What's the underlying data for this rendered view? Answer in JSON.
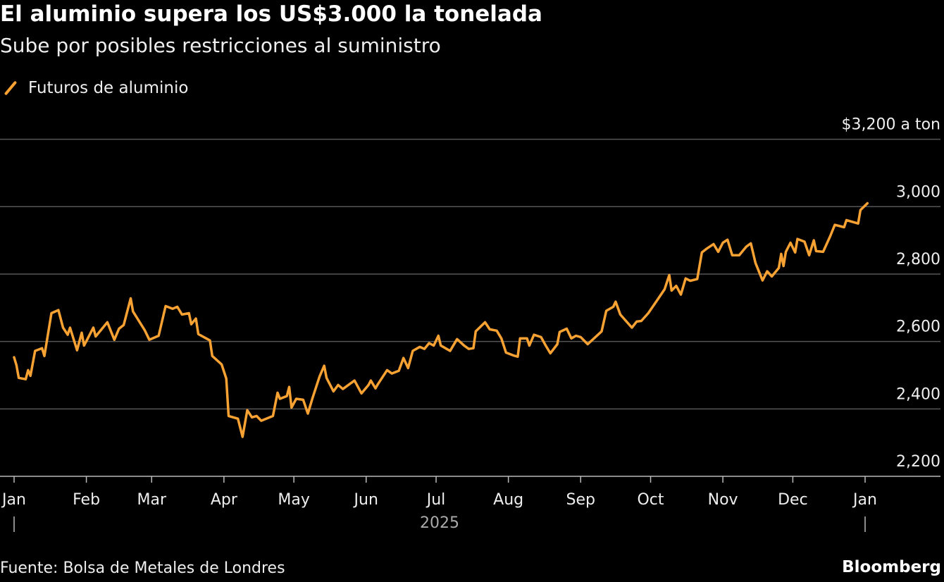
{
  "title": "El aluminio supera los US$3.000 la tonelada",
  "subtitle": "Sube por posibles restricciones al suministro",
  "source": "Fuente: Bolsa de Metales de Londres",
  "brand": "Bloomberg",
  "colors": {
    "series": "#f7a233",
    "background": "#000000",
    "grid": "#555555"
  },
  "chart_data": {
    "type": "line",
    "title": "El aluminio supera los US$3.000 la tonelada",
    "subtitle": "Sube por posibles restricciones al suministro",
    "ylabel": "$3,200 a ton",
    "y_unit_label": "$3,200 a ton",
    "ylim": [
      2200,
      3200
    ],
    "yticks": [
      2200,
      2400,
      2600,
      2800,
      3000,
      3200
    ],
    "ytick_labels": [
      "2,200",
      "2,400",
      "2,600",
      "2,800",
      "3,000",
      "$3,200 a ton"
    ],
    "xlim": [
      "2025-01-01",
      "2026-01-01"
    ],
    "xticks": [
      "2025-01-01",
      "2025-02-01",
      "2025-03-01",
      "2025-04-01",
      "2025-05-01",
      "2025-06-01",
      "2025-07-01",
      "2025-08-01",
      "2025-09-01",
      "2025-10-01",
      "2025-11-01",
      "2025-12-01",
      "2026-01-01"
    ],
    "xtick_labels": [
      "Jan",
      "Feb",
      "Mar",
      "Apr",
      "May",
      "Jun",
      "Jul",
      "Aug",
      "Sep",
      "Oct",
      "Nov",
      "Dec",
      "Jan"
    ],
    "year_label": "2025",
    "grid": true,
    "legend": "top-left",
    "series": [
      {
        "name": "Futuros de aluminio",
        "color": "#f7a233",
        "x": [
          "2025-01-01",
          "2025-01-02",
          "2025-01-03",
          "2025-01-06",
          "2025-01-07",
          "2025-01-08",
          "2025-01-10",
          "2025-01-13",
          "2025-01-14",
          "2025-01-17",
          "2025-01-20",
          "2025-01-22",
          "2025-01-24",
          "2025-01-25",
          "2025-01-28",
          "2025-01-30",
          "2025-01-31",
          "2025-02-04",
          "2025-02-05",
          "2025-02-10",
          "2025-02-13",
          "2025-02-15",
          "2025-02-17",
          "2025-02-20",
          "2025-02-21",
          "2025-02-26",
          "2025-02-28",
          "2025-03-04",
          "2025-03-07",
          "2025-03-10",
          "2025-03-12",
          "2025-03-14",
          "2025-03-17",
          "2025-03-18",
          "2025-03-20",
          "2025-03-21",
          "2025-03-26",
          "2025-03-27",
          "2025-03-31",
          "2025-04-02",
          "2025-04-03",
          "2025-04-07",
          "2025-04-09",
          "2025-04-11",
          "2025-04-13",
          "2025-04-15",
          "2025-04-17",
          "2025-04-22",
          "2025-04-24",
          "2025-04-25",
          "2025-04-28",
          "2025-04-29",
          "2025-04-30",
          "2025-05-02",
          "2025-05-05",
          "2025-05-07",
          "2025-05-09",
          "2025-05-12",
          "2025-05-14",
          "2025-05-15",
          "2025-05-18",
          "2025-05-20",
          "2025-05-22",
          "2025-05-27",
          "2025-05-30",
          "2025-06-02",
          "2025-06-03",
          "2025-06-05",
          "2025-06-06",
          "2025-06-10",
          "2025-06-12",
          "2025-06-15",
          "2025-06-17",
          "2025-06-19",
          "2025-06-21",
          "2025-06-24",
          "2025-06-26",
          "2025-06-28",
          "2025-06-30",
          "2025-07-02",
          "2025-07-03",
          "2025-07-07",
          "2025-07-10",
          "2025-07-13",
          "2025-07-15",
          "2025-07-17",
          "2025-07-18",
          "2025-07-22",
          "2025-07-24",
          "2025-07-27",
          "2025-07-29",
          "2025-07-31",
          "2025-08-03",
          "2025-08-05",
          "2025-08-06",
          "2025-08-09",
          "2025-08-10",
          "2025-08-12",
          "2025-08-15",
          "2025-08-17",
          "2025-08-19",
          "2025-08-22",
          "2025-08-23",
          "2025-08-26",
          "2025-08-28",
          "2025-08-30",
          "2025-09-01",
          "2025-09-04",
          "2025-09-10",
          "2025-09-12",
          "2025-09-15",
          "2025-09-16",
          "2025-09-18",
          "2025-09-23",
          "2025-09-25",
          "2025-09-27",
          "2025-09-30",
          "2025-10-04",
          "2025-10-07",
          "2025-10-09",
          "2025-10-10",
          "2025-10-12",
          "2025-10-14",
          "2025-10-16",
          "2025-10-18",
          "2025-10-21",
          "2025-10-23",
          "2025-10-25",
          "2025-10-28",
          "2025-10-30",
          "2025-11-01",
          "2025-11-03",
          "2025-11-05",
          "2025-11-08",
          "2025-11-11",
          "2025-11-13",
          "2025-11-15",
          "2025-11-18",
          "2025-11-20",
          "2025-11-22",
          "2025-11-25",
          "2025-11-26",
          "2025-11-27",
          "2025-11-28",
          "2025-11-30",
          "2025-12-02",
          "2025-12-03",
          "2025-12-06",
          "2025-12-08",
          "2025-12-10",
          "2025-12-11",
          "2025-12-14",
          "2025-12-17",
          "2025-12-19",
          "2025-12-23",
          "2025-12-24",
          "2025-12-29",
          "2025-12-30",
          "2026-01-02"
        ],
        "y": [
          2553,
          2530,
          2492,
          2488,
          2515,
          2498,
          2572,
          2580,
          2557,
          2684,
          2693,
          2641,
          2620,
          2641,
          2574,
          2626,
          2588,
          2641,
          2615,
          2657,
          2605,
          2638,
          2649,
          2728,
          2689,
          2634,
          2605,
          2617,
          2705,
          2697,
          2703,
          2680,
          2684,
          2651,
          2668,
          2622,
          2603,
          2557,
          2532,
          2490,
          2379,
          2371,
          2317,
          2396,
          2375,
          2379,
          2365,
          2379,
          2448,
          2430,
          2438,
          2465,
          2404,
          2430,
          2427,
          2386,
          2432,
          2496,
          2528,
          2492,
          2452,
          2471,
          2459,
          2484,
          2446,
          2471,
          2484,
          2461,
          2473,
          2515,
          2505,
          2513,
          2551,
          2521,
          2572,
          2584,
          2578,
          2595,
          2588,
          2617,
          2588,
          2572,
          2607,
          2588,
          2578,
          2580,
          2630,
          2657,
          2636,
          2632,
          2609,
          2567,
          2559,
          2555,
          2609,
          2609,
          2588,
          2620,
          2613,
          2588,
          2565,
          2592,
          2628,
          2638,
          2609,
          2617,
          2613,
          2592,
          2630,
          2691,
          2703,
          2718,
          2680,
          2641,
          2659,
          2661,
          2684,
          2724,
          2755,
          2797,
          2751,
          2765,
          2739,
          2787,
          2780,
          2785,
          2864,
          2875,
          2889,
          2866,
          2893,
          2902,
          2856,
          2856,
          2881,
          2891,
          2833,
          2781,
          2808,
          2793,
          2818,
          2860,
          2824,
          2866,
          2893,
          2864,
          2904,
          2896,
          2856,
          2900,
          2868,
          2866,
          2912,
          2946,
          2939,
          2960,
          2950,
          2990,
          3010
        ]
      }
    ]
  }
}
